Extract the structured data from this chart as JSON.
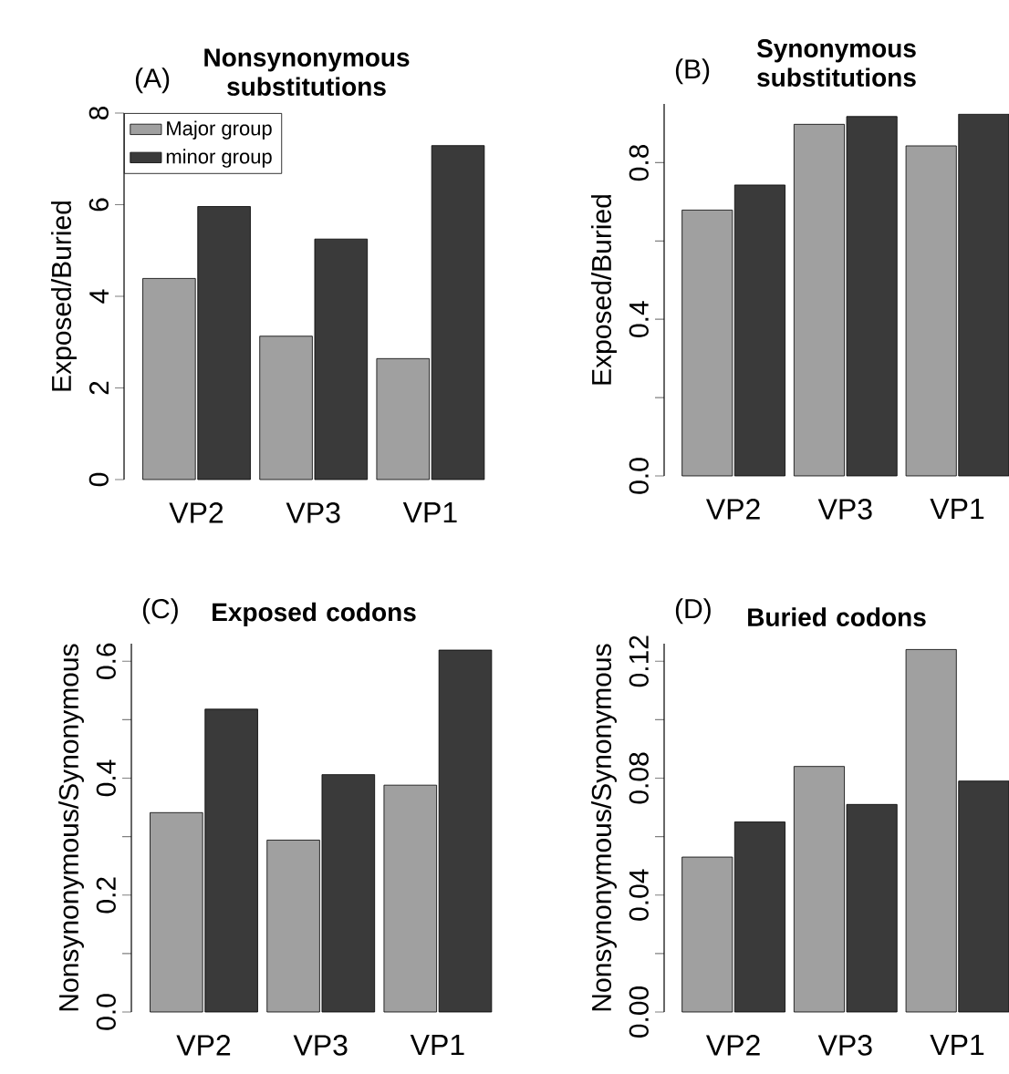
{
  "chart_data": [
    {
      "type": "bar",
      "title": "Nonsynonymous substitutions",
      "annotations": [
        "(A)"
      ],
      "ylabel": "Exposed/Buried",
      "categories": [
        "VP2",
        "VP3",
        "VP1"
      ],
      "series": [
        {
          "name": "Major group",
          "color": "#a0a0a0",
          "values": [
            4.39,
            3.13,
            2.64
          ]
        },
        {
          "name": "minor group",
          "color": "#3a3a3a",
          "values": [
            5.96,
            5.25,
            7.29
          ]
        }
      ],
      "ylim": [
        0,
        8
      ],
      "yticks": [
        0,
        2,
        4,
        6,
        8
      ],
      "legend": "top left"
    },
    {
      "type": "bar",
      "title": "Synonymous substitutions",
      "annotations": [
        "(B)"
      ],
      "ylabel": "Exposed/Buried",
      "categories": [
        "VP2",
        "VP3",
        "VP1"
      ],
      "series": [
        {
          "color": "#a0a0a0",
          "values": [
            0.679,
            0.898,
            0.843
          ]
        },
        {
          "color": "#3a3a3a",
          "values": [
            0.743,
            0.918,
            0.924
          ]
        }
      ],
      "ylim": [
        0,
        0.95
      ],
      "yticks": [
        {
          "value": 0,
          "label": "0.0"
        },
        {
          "value": 0.2,
          "label": null
        },
        {
          "value": 0.4,
          "label": "0.4"
        },
        {
          "value": 0.6,
          "label": null
        },
        {
          "value": 0.8,
          "label": "0.8"
        }
      ]
    },
    {
      "type": "bar",
      "title": "Exposed codons",
      "annotations": [
        "(C)"
      ],
      "ylabel": "Nonsynonymous/Synonymous",
      "categories": [
        "VP2",
        "VP3",
        "VP1"
      ],
      "series": [
        {
          "color": "#a0a0a0",
          "values": [
            0.341,
            0.294,
            0.388
          ]
        },
        {
          "color": "#3a3a3a",
          "values": [
            0.518,
            0.406,
            0.619
          ]
        }
      ],
      "ylim": [
        0,
        0.63
      ],
      "yticks": [
        {
          "value": 0,
          "label": "0.0"
        },
        {
          "value": 0.1,
          "label": null
        },
        {
          "value": 0.2,
          "label": "0.2"
        },
        {
          "value": 0.3,
          "label": null
        },
        {
          "value": 0.4,
          "label": "0.4"
        },
        {
          "value": 0.5,
          "label": null
        },
        {
          "value": 0.6,
          "label": "0.6"
        }
      ]
    },
    {
      "type": "bar",
      "title": "Buried codons",
      "annotations": [
        "(D)"
      ],
      "ylabel": "Nonsynonymous/Synonymous",
      "categories": [
        "VP2",
        "VP3",
        "VP1"
      ],
      "series": [
        {
          "color": "#a0a0a0",
          "values": [
            0.053,
            0.084,
            0.124
          ]
        },
        {
          "color": "#3a3a3a",
          "values": [
            0.065,
            0.071,
            0.079
          ]
        }
      ],
      "ylim": [
        0,
        0.126
      ],
      "yticks": [
        {
          "value": 0,
          "label": "0.00"
        },
        {
          "value": 0.02,
          "label": null
        },
        {
          "value": 0.04,
          "label": "0.04"
        },
        {
          "value": 0.06,
          "label": null
        },
        {
          "value": 0.08,
          "label": "0.08"
        },
        {
          "value": 0.1,
          "label": null
        },
        {
          "value": 0.12,
          "label": "0.12"
        }
      ]
    }
  ]
}
